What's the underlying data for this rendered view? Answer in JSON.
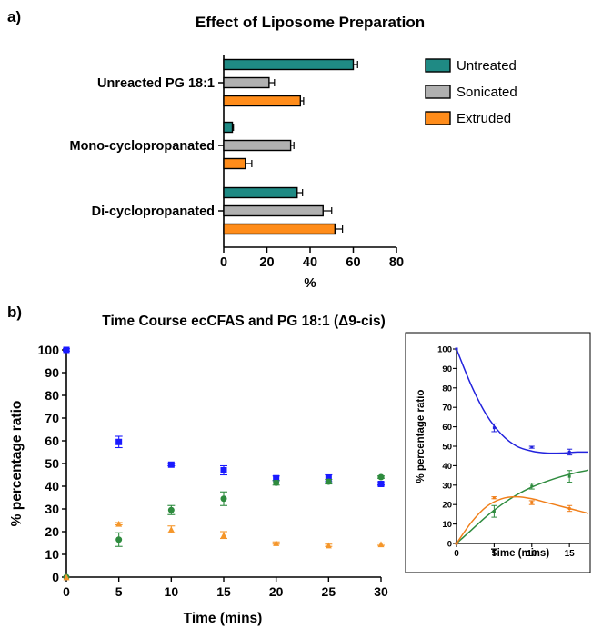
{
  "panel_labels": {
    "a": "a)",
    "b": "b)"
  },
  "chart_data": [
    {
      "type": "bar",
      "orientation": "horizontal",
      "title": "Effect of Liposome Preparation",
      "categories": [
        "Unreacted PG 18:1",
        "Mono-cyclopropanated",
        "Di-cyclopropanated"
      ],
      "xlabel": "%",
      "ylabel": "",
      "xlim": [
        0,
        80
      ],
      "xticks": [
        "0",
        "20",
        "40",
        "60",
        "80"
      ],
      "legend_position": "right",
      "series": [
        {
          "name": "Untreated",
          "color": "#1f8a84",
          "values": [
            60,
            4,
            34
          ],
          "errors": [
            2,
            0.5,
            2.5
          ]
        },
        {
          "name": "Sonicated",
          "color": "#b0b0b0",
          "values": [
            21,
            31,
            46
          ],
          "errors": [
            2.5,
            1.5,
            4
          ]
        },
        {
          "name": "Extruded",
          "color": "#ff8c1a",
          "values": [
            35.5,
            10,
            51.5
          ],
          "errors": [
            1.5,
            3,
            3.5
          ]
        }
      ]
    },
    {
      "type": "scatter",
      "title": "Time Course ecCFAS and PG 18:1 (Δ9-cis)",
      "xlabel": "Time (mins)",
      "ylabel": "% percentage ratio",
      "xlim": [
        0,
        30
      ],
      "ylim": [
        0,
        100
      ],
      "xticks": [
        "0",
        "5",
        "10",
        "15",
        "20",
        "25",
        "30"
      ],
      "yticks": [
        "0",
        "10",
        "20",
        "30",
        "40",
        "50",
        "60",
        "70",
        "80",
        "90",
        "100"
      ],
      "series": [
        {
          "color": "#1a1aff",
          "marker": "square",
          "x": [
            0,
            5,
            10,
            15,
            20,
            25,
            30
          ],
          "y": [
            100,
            59.5,
            49.5,
            47,
            43.5,
            43.5,
            41
          ],
          "errors": [
            0.5,
            2.5,
            0.5,
            2,
            1,
            1.5,
            0.5
          ]
        },
        {
          "color": "#2e8b3e",
          "marker": "circle",
          "x": [
            0,
            5,
            10,
            15,
            20,
            25,
            30
          ],
          "y": [
            0,
            16.5,
            29.5,
            34.5,
            41.5,
            42,
            44
          ],
          "errors": [
            0,
            3,
            2,
            3,
            1,
            1,
            0.5
          ]
        },
        {
          "color": "#f5962a",
          "marker": "triangle",
          "x": [
            0,
            5,
            10,
            15,
            20,
            25,
            30
          ],
          "y": [
            0,
            23.5,
            21,
            18.5,
            15,
            14,
            14.5
          ],
          "errors": [
            0,
            0.5,
            1.5,
            1.5,
            0.5,
            0.5,
            0.5
          ]
        }
      ]
    },
    {
      "type": "line",
      "title": "",
      "xlabel": "Time (mins)",
      "ylabel": "% percentage ratio",
      "xlim": [
        0,
        18
      ],
      "ylim": [
        0,
        100
      ],
      "xticks": [
        "0",
        "5",
        "10",
        "15"
      ],
      "yticks": [
        "0",
        "10",
        "20",
        "30",
        "40",
        "50",
        "60",
        "70",
        "80",
        "90",
        "100"
      ],
      "series": [
        {
          "color": "#2222dd",
          "x": [
            0,
            5,
            10,
            15
          ],
          "y": [
            100,
            59.5,
            49.5,
            47
          ],
          "errors": [
            0,
            2,
            0.5,
            1.5
          ],
          "curve_x": [
            0,
            2,
            4,
            6,
            8,
            10,
            12,
            14,
            16,
            18
          ],
          "curve_y": [
            100,
            81,
            66,
            56,
            50,
            47.5,
            46.5,
            46.5,
            47,
            47
          ]
        },
        {
          "color": "#2e8b3e",
          "x": [
            0,
            5,
            10,
            15
          ],
          "y": [
            0,
            16.5,
            29.5,
            34.5
          ],
          "errors": [
            0,
            3,
            1.5,
            3
          ],
          "curve_x": [
            0,
            2,
            4,
            6,
            8,
            10,
            12,
            14,
            16,
            18
          ],
          "curve_y": [
            0,
            7,
            14,
            20,
            25,
            29,
            32,
            34.5,
            36.5,
            38
          ]
        },
        {
          "color": "#f07f1a",
          "x": [
            0,
            5,
            10,
            15
          ],
          "y": [
            0,
            23.5,
            21,
            18
          ],
          "errors": [
            0,
            0.5,
            1,
            1.5
          ],
          "curve_x": [
            0,
            2,
            4,
            6,
            8,
            10,
            12,
            14,
            16,
            18
          ],
          "curve_y": [
            0,
            11,
            19,
            23,
            24,
            23,
            21,
            19,
            17,
            15
          ]
        }
      ]
    }
  ]
}
